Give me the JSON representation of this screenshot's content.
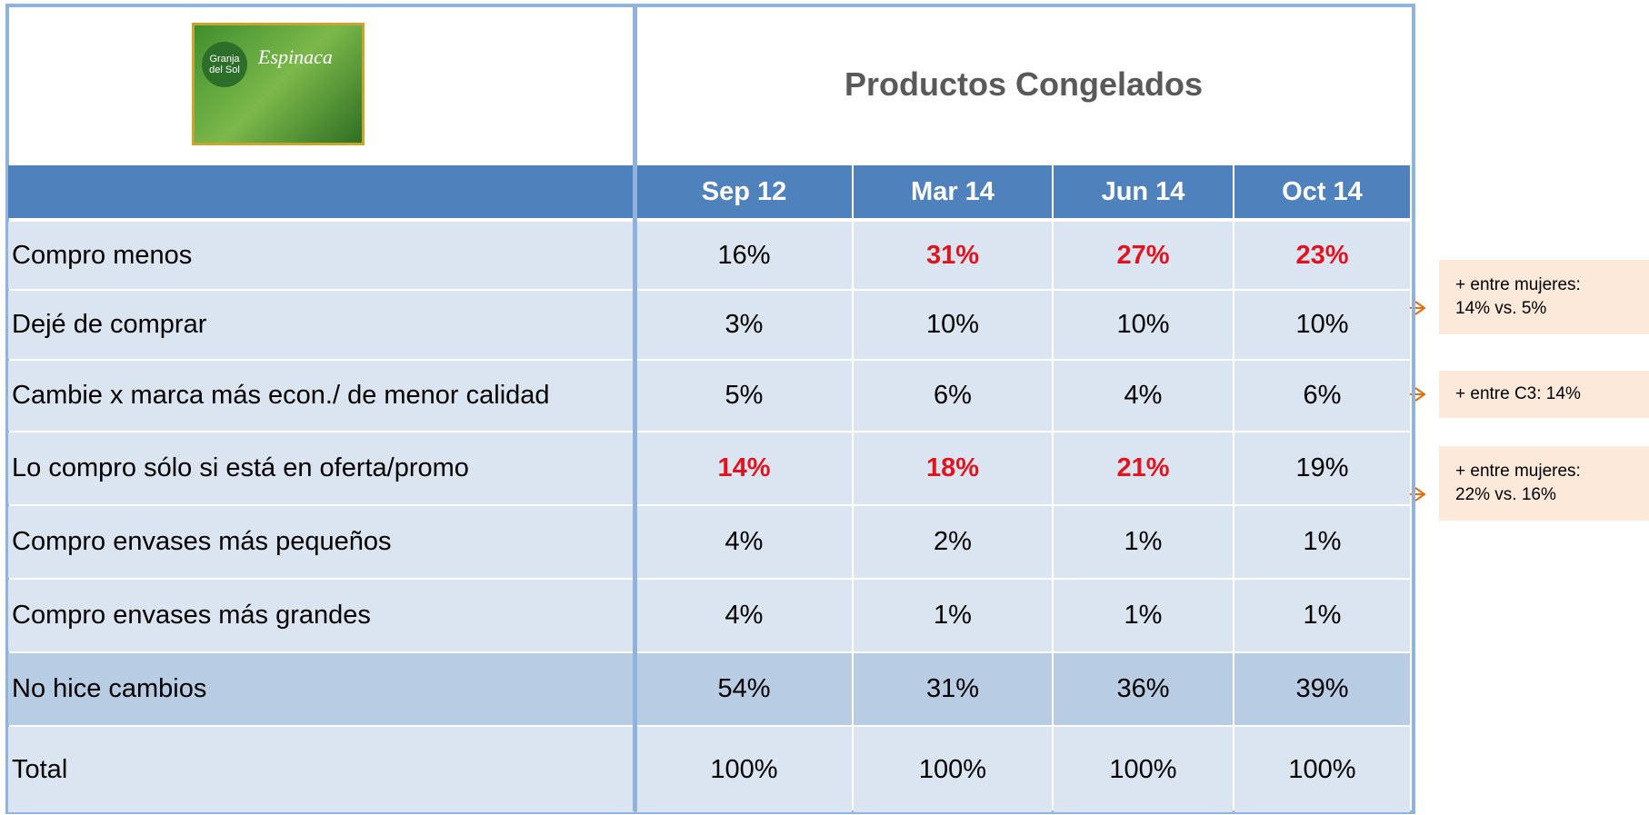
{
  "logo": {
    "brand": "Granja del Sol",
    "product": "Espinaca"
  },
  "header": {
    "title": "Productos Congelados"
  },
  "table": {
    "columns": [
      "Sep 12",
      "Mar 14",
      "Jun 14",
      "Oct 14"
    ],
    "rows": [
      {
        "label": "Compro menos",
        "cells": [
          "16%",
          "31%",
          "27%",
          "23%"
        ],
        "highlight": [
          false,
          true,
          true,
          true
        ]
      },
      {
        "label": "Dejé de comprar",
        "cells": [
          "3%",
          "10%",
          "10%",
          "10%"
        ],
        "highlight": [
          false,
          false,
          false,
          false
        ]
      },
      {
        "label": "Cambie x marca más econ./ de menor calidad",
        "cells": [
          "5%",
          "6%",
          "4%",
          "6%"
        ],
        "highlight": [
          false,
          false,
          false,
          false
        ]
      },
      {
        "label": "Lo compro sólo si está en oferta/promo",
        "cells": [
          "14%",
          "18%",
          "21%",
          "19%"
        ],
        "highlight": [
          true,
          true,
          true,
          false
        ]
      },
      {
        "label": "Compro envases más pequeños",
        "cells": [
          "4%",
          "2%",
          "1%",
          "1%"
        ],
        "highlight": [
          false,
          false,
          false,
          false
        ]
      },
      {
        "label": "Compro envases más grandes",
        "cells": [
          "4%",
          "1%",
          "1%",
          "1%"
        ],
        "highlight": [
          false,
          false,
          false,
          false
        ]
      },
      {
        "label": "No hice cambios",
        "cells": [
          "54%",
          "31%",
          "36%",
          "39%"
        ],
        "highlight": [
          false,
          false,
          false,
          false
        ]
      },
      {
        "label": "Total",
        "cells": [
          "100%",
          "100%",
          "100%",
          "100%"
        ],
        "highlight": [
          false,
          false,
          false,
          false
        ]
      }
    ]
  },
  "callouts": [
    {
      "row": 1,
      "lines": [
        "+ entre mujeres:",
        "14% vs. 5%"
      ]
    },
    {
      "row": 2,
      "lines": [
        "+ entre C3: 14%"
      ]
    },
    {
      "row": 3,
      "lines": [
        "+ entre mujeres:",
        "22% vs. 16%"
      ]
    }
  ]
}
